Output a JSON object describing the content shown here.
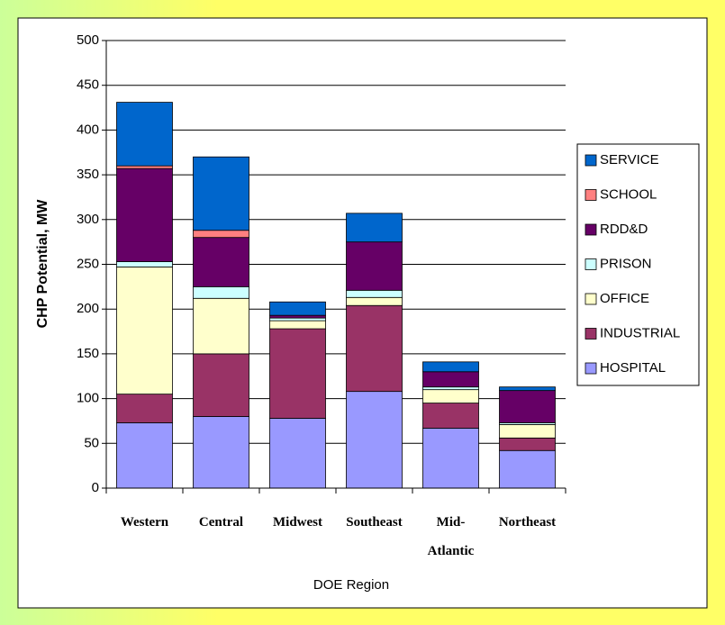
{
  "chart_data": {
    "type": "stacked_bar",
    "x_label": "DOE Region",
    "y_label": "CHP Potential, MW",
    "categories": [
      "Western",
      "Central",
      "Midwest",
      "Southeast",
      "Mid-Atlantic",
      "Northeast"
    ],
    "series": [
      {
        "name": "HOSPITAL",
        "color": "#9999ff",
        "values": [
          73,
          80,
          78,
          108,
          67,
          42
        ]
      },
      {
        "name": "INDUSTRIAL",
        "color": "#993366",
        "values": [
          32,
          70,
          100,
          96,
          28,
          14
        ]
      },
      {
        "name": "OFFICE",
        "color": "#ffffcc",
        "values": [
          142,
          62,
          9,
          9,
          15,
          15
        ]
      },
      {
        "name": "PRISON",
        "color": "#ccffff",
        "values": [
          6,
          13,
          3,
          8,
          3,
          2
        ]
      },
      {
        "name": "RDD&D",
        "color": "#660066",
        "values": [
          104,
          55,
          3,
          54,
          17,
          36
        ]
      },
      {
        "name": "SCHOOL",
        "color": "#ff8080",
        "values": [
          3,
          8,
          0,
          0,
          0,
          0
        ]
      },
      {
        "name": "SERVICE",
        "color": "#0066cc",
        "values": [
          71,
          82,
          15,
          32,
          11,
          4
        ]
      }
    ],
    "ylim": [
      0,
      500
    ],
    "yticks": [
      0,
      50,
      100,
      150,
      200,
      250,
      300,
      350,
      400,
      450,
      500
    ],
    "grid": true
  }
}
